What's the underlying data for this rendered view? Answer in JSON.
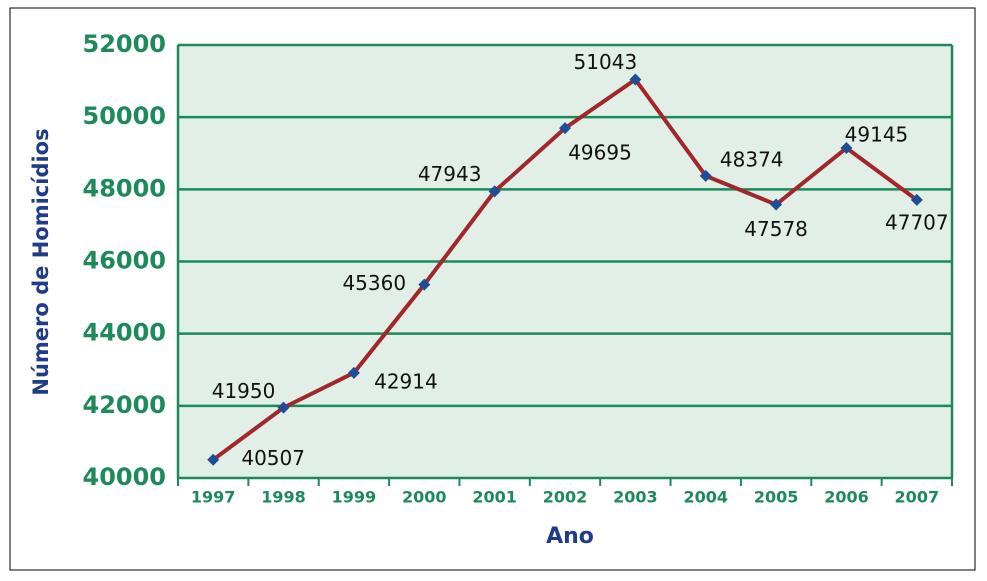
{
  "chart_data": {
    "type": "line",
    "x_label": "Ano",
    "y_label": "Número de Homicídios",
    "categories": [
      "1997",
      "1998",
      "1999",
      "2000",
      "2001",
      "2002",
      "2003",
      "2004",
      "2005",
      "2006",
      "2007"
    ],
    "series": [
      {
        "name": "Homicídios",
        "color": "#a0282b",
        "marker_color": "#1f4e99",
        "values": [
          40507,
          41950,
          42914,
          45360,
          47943,
          49695,
          51043,
          48374,
          47578,
          49145,
          47707
        ]
      }
    ],
    "ylim": [
      40000,
      52000
    ],
    "yticks": [
      40000,
      42000,
      44000,
      46000,
      48000,
      50000,
      52000
    ],
    "grid": true
  }
}
